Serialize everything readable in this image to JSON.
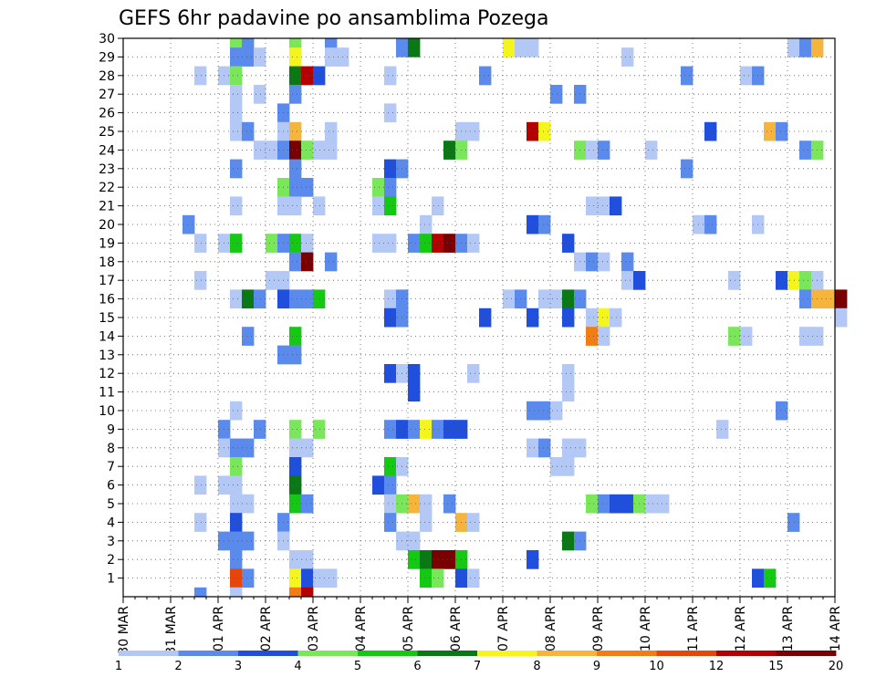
{
  "chart_data": {
    "type": "heatmap",
    "title": "GEFS 6hr padavine po ansamblima Pozega",
    "xlabel": "",
    "ylabel": "",
    "x_tick_labels": [
      "30 MAR",
      "31 MAR",
      "01 APR",
      "02 APR",
      "03 APR",
      "04 APR",
      "05 APR",
      "06 APR",
      "07 APR",
      "08 APR",
      "09 APR",
      "10 APR",
      "11 APR",
      "12 APR",
      "13 APR",
      "14 APR"
    ],
    "y_tick_labels": [
      "1",
      "2",
      "3",
      "4",
      "5",
      "6",
      "7",
      "8",
      "9",
      "10",
      "11",
      "12",
      "13",
      "14",
      "15",
      "16",
      "17",
      "18",
      "19",
      "20",
      "21",
      "22",
      "23",
      "24",
      "25",
      "26",
      "27",
      "28",
      "29",
      "30"
    ],
    "ylim": [
      0,
      30
    ],
    "x_unit": "6-hour steps from 30 MAR 00Z",
    "grid": true,
    "colorbar": {
      "labels": [
        "1",
        "2",
        "3",
        "4",
        "5",
        "6",
        "7",
        "8",
        "9",
        "10",
        "12",
        "15",
        "20"
      ],
      "colors": [
        "#b4c8f5",
        "#5a8aeb",
        "#1f4fdc",
        "#7ae65a",
        "#14c814",
        "#0a7814",
        "#f5f51e",
        "#f5b43c",
        "#f07e14",
        "#e6460a",
        "#b40000",
        "#780000"
      ]
    },
    "cells": [
      [
        30,
        9,
        4
      ],
      [
        30,
        10,
        2
      ],
      [
        30,
        14,
        4
      ],
      [
        30,
        17,
        2
      ],
      [
        30,
        23,
        2
      ],
      [
        30,
        24,
        6
      ],
      [
        30,
        32,
        7
      ],
      [
        30,
        33,
        1
      ],
      [
        30,
        34,
        1
      ],
      [
        30,
        56,
        1
      ],
      [
        30,
        57,
        2
      ],
      [
        30,
        58,
        8
      ],
      [
        29,
        9,
        2
      ],
      [
        29,
        10,
        2
      ],
      [
        29,
        11,
        1
      ],
      [
        29,
        14,
        7
      ],
      [
        29,
        17,
        1
      ],
      [
        29,
        18,
        1
      ],
      [
        29,
        42,
        1
      ],
      [
        28,
        6,
        1
      ],
      [
        28,
        8,
        1
      ],
      [
        28,
        9,
        4
      ],
      [
        28,
        14,
        6
      ],
      [
        28,
        15,
        11
      ],
      [
        28,
        16,
        3
      ],
      [
        28,
        22,
        1
      ],
      [
        28,
        30,
        2
      ],
      [
        28,
        47,
        2
      ],
      [
        28,
        52,
        1
      ],
      [
        28,
        53,
        2
      ],
      [
        27,
        9,
        1
      ],
      [
        27,
        11,
        1
      ],
      [
        27,
        14,
        2
      ],
      [
        27,
        36,
        2
      ],
      [
        27,
        38,
        2
      ],
      [
        26,
        9,
        1
      ],
      [
        26,
        13,
        2
      ],
      [
        26,
        22,
        1
      ],
      [
        25,
        9,
        1
      ],
      [
        25,
        10,
        2
      ],
      [
        25,
        13,
        1
      ],
      [
        25,
        14,
        8
      ],
      [
        25,
        17,
        1
      ],
      [
        25,
        28,
        1
      ],
      [
        25,
        29,
        1
      ],
      [
        25,
        34,
        11
      ],
      [
        25,
        35,
        7
      ],
      [
        25,
        49,
        3
      ],
      [
        25,
        54,
        8
      ],
      [
        25,
        55,
        2
      ],
      [
        24,
        11,
        1
      ],
      [
        24,
        12,
        1
      ],
      [
        24,
        13,
        2
      ],
      [
        24,
        14,
        12
      ],
      [
        24,
        15,
        4
      ],
      [
        24,
        16,
        1
      ],
      [
        24,
        17,
        1
      ],
      [
        24,
        27,
        6
      ],
      [
        24,
        28,
        4
      ],
      [
        24,
        38,
        4
      ],
      [
        24,
        39,
        1
      ],
      [
        24,
        40,
        2
      ],
      [
        24,
        44,
        1
      ],
      [
        24,
        57,
        2
      ],
      [
        24,
        58,
        4
      ],
      [
        23,
        9,
        2
      ],
      [
        23,
        14,
        2
      ],
      [
        23,
        22,
        3
      ],
      [
        23,
        23,
        2
      ],
      [
        23,
        47,
        2
      ],
      [
        22,
        13,
        4
      ],
      [
        22,
        14,
        2
      ],
      [
        22,
        15,
        2
      ],
      [
        22,
        21,
        4
      ],
      [
        22,
        22,
        2
      ],
      [
        21,
        9,
        1
      ],
      [
        21,
        13,
        1
      ],
      [
        21,
        14,
        1
      ],
      [
        21,
        16,
        1
      ],
      [
        21,
        21,
        1
      ],
      [
        21,
        22,
        5
      ],
      [
        21,
        26,
        1
      ],
      [
        21,
        39,
        1
      ],
      [
        21,
        40,
        1
      ],
      [
        21,
        41,
        3
      ],
      [
        20,
        5,
        2
      ],
      [
        20,
        25,
        1
      ],
      [
        20,
        34,
        3
      ],
      [
        20,
        35,
        2
      ],
      [
        20,
        48,
        1
      ],
      [
        20,
        49,
        2
      ],
      [
        20,
        53,
        1
      ],
      [
        19,
        6,
        1
      ],
      [
        19,
        8,
        1
      ],
      [
        19,
        9,
        5
      ],
      [
        19,
        12,
        4
      ],
      [
        19,
        13,
        2
      ],
      [
        19,
        14,
        5
      ],
      [
        19,
        15,
        1
      ],
      [
        19,
        21,
        1
      ],
      [
        19,
        22,
        1
      ],
      [
        19,
        24,
        2
      ],
      [
        19,
        25,
        5
      ],
      [
        19,
        26,
        11
      ],
      [
        19,
        27,
        12
      ],
      [
        19,
        28,
        2
      ],
      [
        19,
        29,
        1
      ],
      [
        19,
        37,
        3
      ],
      [
        18,
        14,
        2
      ],
      [
        18,
        15,
        12
      ],
      [
        18,
        17,
        2
      ],
      [
        18,
        38,
        1
      ],
      [
        18,
        39,
        2
      ],
      [
        18,
        40,
        1
      ],
      [
        18,
        42,
        2
      ],
      [
        17,
        6,
        1
      ],
      [
        17,
        12,
        1
      ],
      [
        17,
        13,
        1
      ],
      [
        17,
        42,
        1
      ],
      [
        17,
        43,
        3
      ],
      [
        17,
        51,
        1
      ],
      [
        17,
        55,
        3
      ],
      [
        17,
        56,
        7
      ],
      [
        17,
        57,
        4
      ],
      [
        17,
        58,
        1
      ],
      [
        16,
        9,
        1
      ],
      [
        16,
        10,
        6
      ],
      [
        16,
        11,
        2
      ],
      [
        16,
        13,
        3
      ],
      [
        16,
        14,
        2
      ],
      [
        16,
        15,
        2
      ],
      [
        16,
        16,
        5
      ],
      [
        16,
        22,
        1
      ],
      [
        16,
        23,
        2
      ],
      [
        16,
        32,
        1
      ],
      [
        16,
        33,
        2
      ],
      [
        16,
        35,
        1
      ],
      [
        16,
        36,
        1
      ],
      [
        16,
        37,
        6
      ],
      [
        16,
        38,
        2
      ],
      [
        16,
        57,
        2
      ],
      [
        16,
        58,
        8
      ],
      [
        16,
        59,
        8
      ],
      [
        16,
        60,
        12
      ],
      [
        15,
        22,
        3
      ],
      [
        15,
        23,
        2
      ],
      [
        15,
        30,
        3
      ],
      [
        15,
        34,
        3
      ],
      [
        15,
        37,
        3
      ],
      [
        15,
        39,
        1
      ],
      [
        15,
        40,
        7
      ],
      [
        15,
        41,
        1
      ],
      [
        15,
        60,
        1
      ],
      [
        14,
        10,
        2
      ],
      [
        14,
        14,
        5
      ],
      [
        14,
        39,
        9
      ],
      [
        14,
        40,
        1
      ],
      [
        14,
        51,
        4
      ],
      [
        14,
        52,
        1
      ],
      [
        14,
        57,
        1
      ],
      [
        14,
        58,
        1
      ],
      [
        13,
        13,
        2
      ],
      [
        13,
        14,
        2
      ],
      [
        12,
        22,
        3
      ],
      [
        12,
        23,
        1
      ],
      [
        12,
        24,
        3
      ],
      [
        12,
        29,
        1
      ],
      [
        12,
        37,
        1
      ],
      [
        11,
        24,
        3
      ],
      [
        11,
        37,
        1
      ],
      [
        10,
        9,
        1
      ],
      [
        10,
        34,
        2
      ],
      [
        10,
        35,
        2
      ],
      [
        10,
        36,
        1
      ],
      [
        10,
        55,
        2
      ],
      [
        9,
        8,
        2
      ],
      [
        9,
        11,
        2
      ],
      [
        9,
        14,
        4
      ],
      [
        9,
        16,
        4
      ],
      [
        9,
        22,
        2
      ],
      [
        9,
        23,
        3
      ],
      [
        9,
        24,
        2
      ],
      [
        9,
        25,
        7
      ],
      [
        9,
        26,
        2
      ],
      [
        9,
        27,
        3
      ],
      [
        9,
        28,
        3
      ],
      [
        9,
        50,
        1
      ],
      [
        8,
        8,
        1
      ],
      [
        8,
        9,
        2
      ],
      [
        8,
        10,
        2
      ],
      [
        8,
        14,
        1
      ],
      [
        8,
        15,
        1
      ],
      [
        8,
        34,
        1
      ],
      [
        8,
        35,
        2
      ],
      [
        8,
        37,
        1
      ],
      [
        8,
        38,
        1
      ],
      [
        7,
        9,
        4
      ],
      [
        7,
        14,
        3
      ],
      [
        7,
        22,
        5
      ],
      [
        7,
        23,
        1
      ],
      [
        7,
        36,
        1
      ],
      [
        7,
        37,
        1
      ],
      [
        6,
        6,
        1
      ],
      [
        6,
        8,
        1
      ],
      [
        6,
        9,
        1
      ],
      [
        6,
        14,
        6
      ],
      [
        6,
        21,
        3
      ],
      [
        6,
        22,
        2
      ],
      [
        5,
        9,
        1
      ],
      [
        5,
        10,
        1
      ],
      [
        5,
        14,
        5
      ],
      [
        5,
        15,
        2
      ],
      [
        5,
        22,
        1
      ],
      [
        5,
        23,
        4
      ],
      [
        5,
        24,
        8
      ],
      [
        5,
        25,
        1
      ],
      [
        5,
        27,
        2
      ],
      [
        5,
        39,
        4
      ],
      [
        5,
        40,
        2
      ],
      [
        5,
        41,
        3
      ],
      [
        5,
        42,
        3
      ],
      [
        5,
        43,
        4
      ],
      [
        5,
        44,
        1
      ],
      [
        5,
        45,
        1
      ],
      [
        4,
        6,
        1
      ],
      [
        4,
        9,
        3
      ],
      [
        4,
        13,
        2
      ],
      [
        4,
        22,
        2
      ],
      [
        4,
        25,
        1
      ],
      [
        4,
        28,
        8
      ],
      [
        4,
        29,
        1
      ],
      [
        4,
        56,
        2
      ],
      [
        3,
        8,
        2
      ],
      [
        3,
        9,
        2
      ],
      [
        3,
        10,
        2
      ],
      [
        3,
        13,
        1
      ],
      [
        3,
        23,
        1
      ],
      [
        3,
        24,
        1
      ],
      [
        3,
        37,
        6
      ],
      [
        3,
        38,
        2
      ],
      [
        2,
        9,
        2
      ],
      [
        2,
        14,
        1
      ],
      [
        2,
        15,
        1
      ],
      [
        2,
        24,
        5
      ],
      [
        2,
        25,
        6
      ],
      [
        2,
        26,
        12
      ],
      [
        2,
        27,
        12
      ],
      [
        2,
        28,
        5
      ],
      [
        2,
        34,
        3
      ],
      [
        1,
        9,
        10
      ],
      [
        1,
        10,
        2
      ],
      [
        1,
        14,
        7
      ],
      [
        1,
        15,
        3
      ],
      [
        1,
        16,
        1
      ],
      [
        1,
        17,
        1
      ],
      [
        1,
        25,
        5
      ],
      [
        1,
        26,
        4
      ],
      [
        1,
        28,
        3
      ],
      [
        1,
        29,
        1
      ],
      [
        1,
        53,
        3
      ],
      [
        1,
        54,
        5
      ],
      [
        0,
        6,
        2
      ],
      [
        0,
        9,
        1
      ],
      [
        0,
        14,
        9
      ],
      [
        0,
        15,
        11
      ]
    ]
  }
}
